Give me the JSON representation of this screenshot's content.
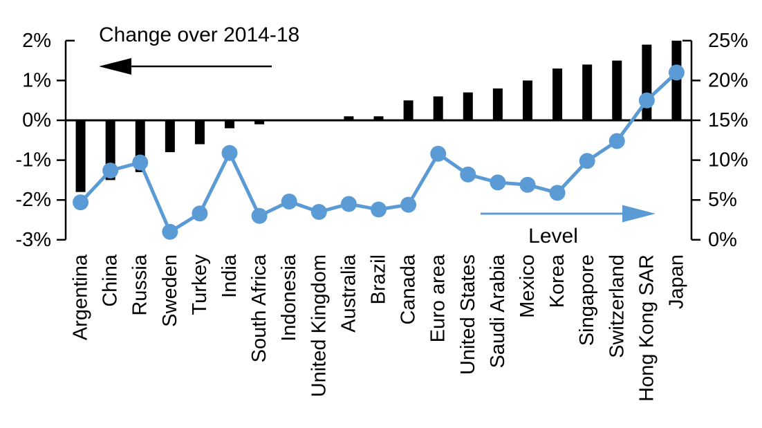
{
  "chart_data": {
    "type": "bar",
    "subtype": "combo-bar-line-dual-axis",
    "title": "",
    "categories": [
      "Argentina",
      "China",
      "Russia",
      "Sweden",
      "Turkey",
      "India",
      "South Africa",
      "Indonesia",
      "United Kingdom",
      "Australia",
      "Brazil",
      "Canada",
      "Euro area",
      "United States",
      "Saudi Arabia",
      "Mexico",
      "Korea",
      "Singapore",
      "Switzerland",
      "Hong Kong SAR",
      "Japan"
    ],
    "series": [
      {
        "name": "Change over 2014-18",
        "type": "bar",
        "axis": "left",
        "color": "#000000",
        "values": [
          -1.8,
          -1.5,
          -1.3,
          -0.8,
          -0.6,
          -0.2,
          -0.1,
          0.0,
          0.0,
          0.1,
          0.1,
          0.5,
          0.6,
          0.7,
          0.8,
          1.0,
          1.3,
          1.4,
          1.5,
          1.9,
          2.0
        ]
      },
      {
        "name": "Level",
        "type": "line",
        "axis": "right",
        "color": "#5b9bd5",
        "values": [
          4.7,
          8.7,
          9.7,
          1.0,
          3.3,
          10.9,
          3.0,
          4.8,
          3.5,
          4.5,
          3.8,
          4.4,
          10.8,
          8.2,
          7.2,
          6.9,
          5.9,
          9.9,
          12.4,
          17.5,
          21.0
        ]
      }
    ],
    "left_axis": {
      "tick_labels": [
        "2%",
        "1%",
        "0%",
        "-1%",
        "-2%",
        "-3%"
      ],
      "tick_values": [
        2,
        1,
        0,
        -1,
        -2,
        -3
      ],
      "range": [
        -3,
        2
      ]
    },
    "right_axis": {
      "tick_labels": [
        "25%",
        "20%",
        "15%",
        "10%",
        "5%",
        "0%"
      ],
      "tick_values": [
        25,
        20,
        15,
        10,
        5,
        0
      ],
      "range": [
        0,
        25
      ]
    },
    "annotations": {
      "bar_series_label": "Change over 2014-18",
      "bar_series_arrow_direction": "left",
      "line_series_label": "Level",
      "line_series_arrow_direction": "right"
    },
    "grid": false,
    "legend_position": "in-plot annotations with arrows"
  },
  "colors": {
    "bar": "#000000",
    "line": "#5b9bd5",
    "axis": "#000000",
    "text": "#000000",
    "background": "#ffffff"
  }
}
